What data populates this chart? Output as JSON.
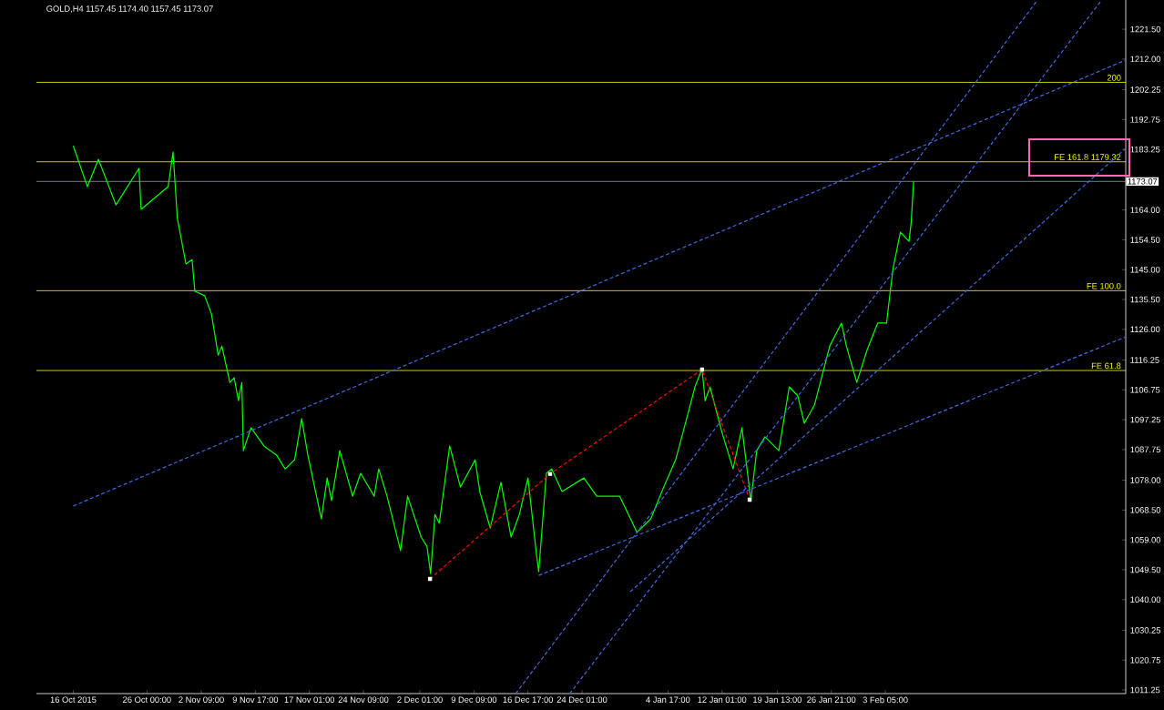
{
  "chart_data": {
    "type": "line",
    "title": "GOLD,H4  1157.45 1174.40 1157.45 1173.07",
    "xlim": [
      "2015-10-11T00:00",
      "2016-03-06T20:00"
    ],
    "ylim": [
      1010.1,
      1230.8
    ],
    "xticks": [
      {
        "value": "2015-10-16T00:00",
        "label": "16 Oct 2015"
      },
      {
        "value": "2015-10-26T00:00",
        "label": "26 Oct 00:00"
      },
      {
        "value": "2015-11-02T09:00",
        "label": "2 Nov 09:00"
      },
      {
        "value": "2015-11-09T17:00",
        "label": "9 Nov 17:00"
      },
      {
        "value": "2015-11-17T01:00",
        "label": "17 Nov 01:00"
      },
      {
        "value": "2015-11-24T09:00",
        "label": "24 Nov 09:00"
      },
      {
        "value": "2015-12-02T01:00",
        "label": "2 Dec 01:00"
      },
      {
        "value": "2015-12-09T09:00",
        "label": "9 Dec 09:00"
      },
      {
        "value": "2015-12-16T17:00",
        "label": "16 Dec 17:00"
      },
      {
        "value": "2015-12-24T01:00",
        "label": "24 Dec 01:00"
      },
      {
        "value": "2016-01-04T17:00",
        "label": "4 Jan 17:00"
      },
      {
        "value": "2016-01-12T01:00",
        "label": "12 Jan 01:00"
      },
      {
        "value": "2016-01-19T13:00",
        "label": "19 Jan 13:00"
      },
      {
        "value": "2016-01-26T21:00",
        "label": "26 Jan 21:00"
      },
      {
        "value": "2016-02-03T05:00",
        "label": "3 Feb 05:00"
      }
    ],
    "yticks": [
      {
        "value": 1011.25,
        "label": "1011.25"
      },
      {
        "value": 1020.75,
        "label": "1020.75"
      },
      {
        "value": 1030.25,
        "label": "1030.25"
      },
      {
        "value": 1040.0,
        "label": "1040.00"
      },
      {
        "value": 1049.5,
        "label": "1049.50"
      },
      {
        "value": 1059.0,
        "label": "1059.00"
      },
      {
        "value": 1068.5,
        "label": "1068.50"
      },
      {
        "value": 1078.0,
        "label": "1078.00"
      },
      {
        "value": 1087.75,
        "label": "1087.75"
      },
      {
        "value": 1097.25,
        "label": "1097.25"
      },
      {
        "value": 1106.75,
        "label": "1106.75"
      },
      {
        "value": 1116.25,
        "label": "1116.25"
      },
      {
        "value": 1126.0,
        "label": "1126.00"
      },
      {
        "value": 1135.5,
        "label": "1135.50"
      },
      {
        "value": 1145.0,
        "label": "1145.00"
      },
      {
        "value": 1154.5,
        "label": "1154.50"
      },
      {
        "value": 1164.0,
        "label": "1164.00"
      },
      {
        "value": 1183.25,
        "label": "1183.25"
      },
      {
        "value": 1192.75,
        "label": "1192.75"
      },
      {
        "value": 1202.25,
        "label": "1202.25"
      },
      {
        "value": 1212.0,
        "label": "1212.00"
      },
      {
        "value": 1221.5,
        "label": "1221.50"
      }
    ],
    "series": [
      {
        "color": "#00ff00",
        "x": [
          "2015-10-16T00:00",
          "2015-10-17T22:00",
          "2015-10-19T10:00",
          "2015-10-21T19:00",
          "2015-10-24T22:00",
          "2015-10-25T05:00",
          "2015-10-28T21:00",
          "2015-10-29T13:00",
          "2015-10-30T03:00",
          "2015-10-31T07:00",
          "2015-11-01T03:00",
          "2015-11-01T12:00",
          "2015-11-02T20:00",
          "2015-11-03T18:00",
          "2015-11-04T16:00",
          "2015-11-05T04:00",
          "2015-11-06T06:00",
          "2015-11-06T20:00",
          "2015-11-07T10:00",
          "2015-11-07T21:00",
          "2015-11-08T02:00",
          "2015-11-09T03:00",
          "2015-11-10T21:00",
          "2015-11-12T14:00",
          "2015-11-13T18:00",
          "2015-11-15T01:00",
          "2015-11-16T00:00",
          "2015-11-16T20:00",
          "2015-11-18T16:00",
          "2015-11-19T11:00",
          "2015-11-20T01:00",
          "2015-11-21T04:00",
          "2015-11-22T22:00",
          "2015-11-24T00:00",
          "2015-11-25T20:00",
          "2015-11-26T11:00",
          "2015-11-27T14:00",
          "2015-11-29T10:00",
          "2015-11-30T09:00",
          "2015-12-02T05:00",
          "2015-12-03T00:00",
          "2015-12-03T12:00",
          "2015-12-04T02:00",
          "2015-12-04T16:00",
          "2015-12-05T06:00",
          "2015-12-06T02:00",
          "2015-12-07T13:00",
          "2015-12-09T13:00",
          "2015-12-10T04:00",
          "2015-12-11T14:00",
          "2015-12-13T01:00",
          "2015-12-14T10:00",
          "2015-12-15T13:00",
          "2015-12-16T17:00",
          "2015-12-17T21:00",
          "2015-12-18T04:00",
          "2015-12-19T05:00",
          "2015-12-19T22:00",
          "2015-12-21T08:00",
          "2015-12-24T07:00",
          "2015-12-26T01:00",
          "2015-12-29T04:00",
          "2015-12-31T12:00",
          "2016-01-02T09:00",
          "2016-01-04T03:00",
          "2016-01-05T18:00",
          "2016-01-06T22:00",
          "2016-01-08T09:00",
          "2016-01-09T08:00",
          "2016-01-09T18:00",
          "2016-01-10T10:00",
          "2016-01-12T01:00",
          "2016-01-13T13:00",
          "2016-01-14T18:00",
          "2016-01-15T23:00",
          "2016-01-16T18:00",
          "2016-01-17T21:00",
          "2016-01-19T18:00",
          "2016-01-21T04:00",
          "2016-01-22T08:00",
          "2016-01-23T05:00",
          "2016-01-24T14:00",
          "2016-01-26T16:00",
          "2016-01-28T06:00",
          "2016-01-28T22:00",
          "2016-01-30T08:00",
          "2016-01-31T17:00",
          "2016-02-02T04:00",
          "2016-02-03T09:00",
          "2016-02-03T21:00",
          "2016-02-04T06:00",
          "2016-02-05T06:00",
          "2016-02-06T10:00",
          "2016-02-06T17:00",
          "2016-02-07T01:00"
        ],
        "values": [
          1184.4,
          1171.4,
          1180.1,
          1165.6,
          1177.2,
          1164.2,
          1171.4,
          1182.4,
          1161.3,
          1146.8,
          1148.2,
          1138.1,
          1136.7,
          1130.9,
          1117.8,
          1120.7,
          1109.1,
          1110.6,
          1103.3,
          1109.1,
          1087.4,
          1094.7,
          1088.9,
          1086.0,
          1081.6,
          1084.5,
          1097.6,
          1086.0,
          1065.7,
          1078.7,
          1071.5,
          1087.4,
          1072.9,
          1080.2,
          1072.9,
          1081.6,
          1072.9,
          1055.6,
          1072.9,
          1059.9,
          1057.0,
          1048.3,
          1067.1,
          1064.3,
          1074.4,
          1088.9,
          1075.8,
          1084.5,
          1074.4,
          1062.8,
          1077.3,
          1059.9,
          1067.1,
          1078.7,
          1054.1,
          1048.9,
          1080.2,
          1081.6,
          1074.4,
          1078.7,
          1072.9,
          1072.9,
          1061.4,
          1065.7,
          1075.8,
          1084.5,
          1094.7,
          1107.7,
          1113.5,
          1103.3,
          1107.7,
          1093.2,
          1081.6,
          1094.7,
          1071.5,
          1087.4,
          1091.8,
          1087.4,
          1107.7,
          1104.8,
          1096.1,
          1101.9,
          1120.7,
          1128.0,
          1120.7,
          1109.1,
          1119.3,
          1128.0,
          1128.0,
          1138.1,
          1145.3,
          1156.9,
          1154.0,
          1159.8,
          1173.1
        ]
      },
      {
        "color": "#ff0000",
        "line_style": "dashed",
        "marker": "square",
        "x": [
          "2015-12-03T10:00",
          "2015-12-19T17:00",
          "2016-01-09T08:00",
          "2016-01-15T19:00"
        ],
        "values": [
          1046.6,
          1080.0,
          1113.2,
          1071.8
        ]
      },
      {
        "color": "#4169e1",
        "line_style": "dashed",
        "x": [
          "2015-10-16T00:00",
          "2016-03-06T20:00"
        ],
        "values": [
          1069.8,
          1211.7
        ]
      },
      {
        "color": "#4169e1",
        "line_style": "dashed",
        "x": [
          "2015-12-18T04:00",
          "2016-03-06T20:00"
        ],
        "values": [
          1047.7,
          1123.6
        ]
      },
      {
        "color": "#4169e1",
        "line_style": "dashed",
        "x": [
          "2015-12-22T09:00",
          "2016-03-03T13:00"
        ],
        "values": [
          1010.1,
          1230.7
        ]
      },
      {
        "color": "#4169e1",
        "line_style": "dashed",
        "x": [
          "2015-12-15T01:00",
          "2016-02-23T20:00"
        ],
        "values": [
          1010.1,
          1230.7
        ]
      },
      {
        "color": "#4169e1",
        "line_style": "dashed",
        "x": [
          "2015-12-30T14:00",
          "2016-03-06T20:00"
        ],
        "values": [
          1042.5,
          1183.6
        ]
      }
    ],
    "ref_lines": [
      {
        "axis": "y",
        "value": 1204.6,
        "color": "#ffff00"
      },
      {
        "axis": "y",
        "value": 1179.32,
        "label": "FE 161.8 1179.32",
        "color": "#ffff00"
      },
      {
        "axis": "y",
        "value": 1138.3,
        "label": "FE 100.0",
        "color": "#ffff00"
      },
      {
        "axis": "y",
        "value": 1112.9,
        "label": "FE 61.8",
        "color": "#ffff00"
      },
      {
        "axis": "y",
        "value": 1173.07,
        "label": "1173.07",
        "color": "#8c9bb0"
      }
    ],
    "annotations": [
      {
        "text": "200",
        "x": "2016-03-06T20:00",
        "y": 1204.6
      }
    ],
    "grid": false
  }
}
